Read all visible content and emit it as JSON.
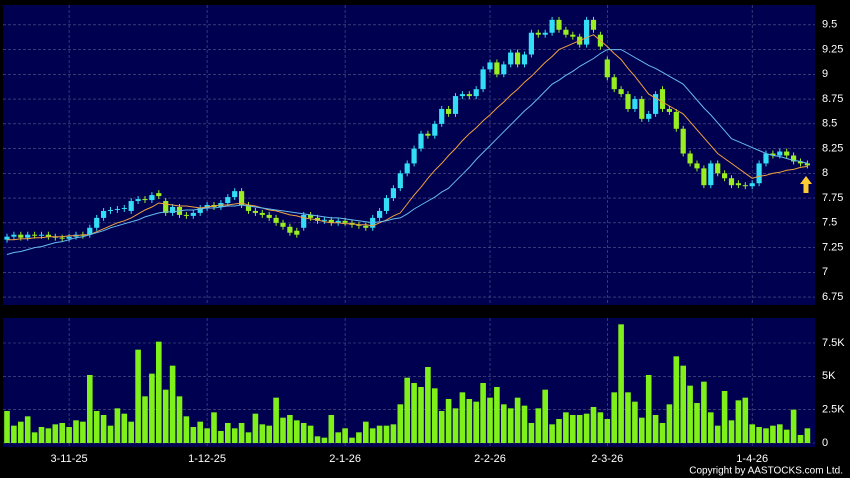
{
  "chart_data": [
    {
      "type": "candlestick",
      "open": [
        7.33,
        7.36,
        7.38,
        7.35,
        7.38,
        7.37,
        7.38,
        7.36,
        7.35,
        7.34,
        7.36,
        7.38,
        7.38,
        7.45,
        7.55,
        7.62,
        7.63,
        7.64,
        7.62,
        7.72,
        7.74,
        7.73,
        7.8,
        7.72,
        7.6,
        7.66,
        7.58,
        7.57,
        7.6,
        7.65,
        7.68,
        7.66,
        7.7,
        7.76,
        7.82,
        7.68,
        7.62,
        7.6,
        7.58,
        7.55,
        7.5,
        7.46,
        7.42,
        7.45,
        7.58,
        7.55,
        7.52,
        7.53,
        7.5,
        7.52,
        7.5,
        7.48,
        7.47,
        7.45,
        7.55,
        7.62,
        7.75,
        7.85,
        8.0,
        8.1,
        8.25,
        8.4,
        8.38,
        8.5,
        8.65,
        8.6,
        8.78,
        8.8,
        8.78,
        8.85,
        9.05,
        9.12,
        9.0,
        9.1,
        9.22,
        9.1,
        9.2,
        9.42,
        9.4,
        9.42,
        9.55,
        9.45,
        9.4,
        9.38,
        9.3,
        9.55,
        9.4,
        9.15,
        8.97,
        8.85,
        8.8,
        8.65,
        8.75,
        8.55,
        8.6,
        8.85,
        8.65,
        8.62,
        8.45,
        8.2,
        8.1,
        8.05,
        7.88,
        8.1,
        8.0,
        7.95,
        7.9,
        7.88,
        7.87,
        7.9,
        8.1,
        8.2,
        8.18,
        8.22,
        8.18,
        8.12,
        8.1
      ],
      "high": [
        7.39,
        7.41,
        7.41,
        7.41,
        7.41,
        7.41,
        7.41,
        7.39,
        7.38,
        7.39,
        7.41,
        7.41,
        7.48,
        7.58,
        7.65,
        7.66,
        7.67,
        7.68,
        7.75,
        7.77,
        7.77,
        7.81,
        7.83,
        7.75,
        7.69,
        7.69,
        7.61,
        7.63,
        7.68,
        7.71,
        7.71,
        7.73,
        7.79,
        7.85,
        7.85,
        7.71,
        7.65,
        7.63,
        7.61,
        7.58,
        7.53,
        7.49,
        7.45,
        7.61,
        7.61,
        7.58,
        7.56,
        7.56,
        7.55,
        7.55,
        7.53,
        7.51,
        7.5,
        7.58,
        7.65,
        7.78,
        7.88,
        8.03,
        8.13,
        8.28,
        8.43,
        8.43,
        8.53,
        8.68,
        8.68,
        8.81,
        8.83,
        8.83,
        8.88,
        9.08,
        9.15,
        9.15,
        9.13,
        9.25,
        9.25,
        9.23,
        9.45,
        9.45,
        9.45,
        9.58,
        9.58,
        9.48,
        9.43,
        9.41,
        9.58,
        9.58,
        9.43,
        9.18,
        9.0,
        8.88,
        8.83,
        8.78,
        8.78,
        8.63,
        8.83,
        8.88,
        8.68,
        8.65,
        8.48,
        8.23,
        8.13,
        8.08,
        8.13,
        8.13,
        8.03,
        7.98,
        7.93,
        7.91,
        7.93,
        8.13,
        8.23,
        8.23,
        8.25,
        8.25,
        8.21,
        8.15,
        8.13
      ],
      "low": [
        7.3,
        7.33,
        7.32,
        7.32,
        7.34,
        7.34,
        7.33,
        7.32,
        7.31,
        7.31,
        7.33,
        7.34,
        7.35,
        7.42,
        7.52,
        7.59,
        7.6,
        7.61,
        7.59,
        7.69,
        7.7,
        7.7,
        7.74,
        7.57,
        7.57,
        7.55,
        7.54,
        7.54,
        7.57,
        7.62,
        7.63,
        7.63,
        7.67,
        7.73,
        7.65,
        7.59,
        7.57,
        7.55,
        7.52,
        7.47,
        7.43,
        7.37,
        7.35,
        7.42,
        7.52,
        7.49,
        7.49,
        7.47,
        7.47,
        7.47,
        7.45,
        7.44,
        7.42,
        7.42,
        7.52,
        7.59,
        7.72,
        7.82,
        7.97,
        8.07,
        8.22,
        8.35,
        8.35,
        8.47,
        8.57,
        8.57,
        8.75,
        8.75,
        8.75,
        8.82,
        9.02,
        8.97,
        8.97,
        9.07,
        9.07,
        9.07,
        9.17,
        9.37,
        9.37,
        9.39,
        9.42,
        9.37,
        9.35,
        9.27,
        9.27,
        9.42,
        9.25,
        8.94,
        8.82,
        8.77,
        8.62,
        8.62,
        8.52,
        8.52,
        8.57,
        8.62,
        8.59,
        8.42,
        8.17,
        8.07,
        8.02,
        7.85,
        7.85,
        7.97,
        7.92,
        7.85,
        7.85,
        7.84,
        7.84,
        7.87,
        8.07,
        8.15,
        8.15,
        8.15,
        8.09,
        8.07,
        8.05
      ],
      "close": [
        7.36,
        7.38,
        7.35,
        7.38,
        7.37,
        7.38,
        7.36,
        7.35,
        7.34,
        7.36,
        7.38,
        7.37,
        7.45,
        7.55,
        7.62,
        7.63,
        7.64,
        7.65,
        7.72,
        7.74,
        7.73,
        7.78,
        7.77,
        7.6,
        7.66,
        7.58,
        7.57,
        7.6,
        7.65,
        7.68,
        7.66,
        7.7,
        7.76,
        7.82,
        7.68,
        7.62,
        7.6,
        7.58,
        7.55,
        7.5,
        7.46,
        7.4,
        7.38,
        7.58,
        7.55,
        7.52,
        7.53,
        7.5,
        7.52,
        7.5,
        7.48,
        7.47,
        7.45,
        7.55,
        7.62,
        7.75,
        7.85,
        8.0,
        8.1,
        8.25,
        8.4,
        8.38,
        8.5,
        8.65,
        8.6,
        8.78,
        8.8,
        8.78,
        8.85,
        9.05,
        9.12,
        9.0,
        9.1,
        9.22,
        9.1,
        9.2,
        9.42,
        9.4,
        9.42,
        9.55,
        9.45,
        9.4,
        9.38,
        9.3,
        9.55,
        9.45,
        9.28,
        8.97,
        8.85,
        8.8,
        8.65,
        8.75,
        8.55,
        8.6,
        8.8,
        8.65,
        8.62,
        8.45,
        8.2,
        8.1,
        8.05,
        7.88,
        8.1,
        8.0,
        7.95,
        7.88,
        7.88,
        7.87,
        7.9,
        8.1,
        8.2,
        8.18,
        8.22,
        8.18,
        8.12,
        8.1,
        8.08
      ],
      "up_color": "#33ddf5",
      "down_color": "#99ee22",
      "series": [
        {
          "color": "#f0a040",
          "values": [
            7.33,
            7.33,
            7.34,
            7.34,
            7.35,
            7.35,
            7.36,
            7.36,
            7.36,
            7.37,
            7.37,
            7.38,
            7.38,
            7.41,
            7.44,
            7.47,
            7.5,
            7.52,
            7.55,
            7.59,
            7.63,
            7.66,
            7.7,
            7.69,
            7.68,
            7.67,
            7.67,
            7.66,
            7.65,
            7.66,
            7.67,
            7.68,
            7.68,
            7.69,
            7.7,
            7.68,
            7.67,
            7.65,
            7.63,
            7.62,
            7.6,
            7.58,
            7.57,
            7.55,
            7.54,
            7.53,
            7.51,
            7.5,
            7.5,
            7.49,
            7.49,
            7.48,
            7.48,
            7.47,
            7.5,
            7.53,
            7.57,
            7.6,
            7.69,
            7.78,
            7.86,
            7.95,
            8.03,
            8.1,
            8.18,
            8.25,
            8.33,
            8.4,
            8.46,
            8.53,
            8.59,
            8.66,
            8.72,
            8.79,
            8.85,
            8.92,
            8.98,
            9.05,
            9.12,
            9.18,
            9.25,
            9.28,
            9.31,
            9.34,
            9.37,
            9.4,
            9.34,
            9.28,
            9.21,
            9.15,
            9.06,
            8.98,
            8.89,
            8.8,
            8.76,
            8.72,
            8.68,
            8.64,
            8.6,
            8.52,
            8.44,
            8.36,
            8.28,
            8.2,
            8.15,
            8.1,
            8.05,
            8.0,
            7.95,
            7.97,
            7.98,
            8.0,
            8.01,
            8.03,
            8.04,
            8.06,
            8.07
          ]
        },
        {
          "color": "#66bbee",
          "values": [
            7.18,
            7.2,
            7.21,
            7.23,
            7.25,
            7.26,
            7.28,
            7.3,
            7.31,
            7.33,
            7.35,
            7.36,
            7.38,
            7.4,
            7.42,
            7.45,
            7.47,
            7.49,
            7.51,
            7.53,
            7.56,
            7.58,
            7.6,
            7.61,
            7.61,
            7.62,
            7.63,
            7.63,
            7.64,
            7.65,
            7.65,
            7.66,
            7.67,
            7.67,
            7.68,
            7.67,
            7.66,
            7.65,
            7.64,
            7.63,
            7.62,
            7.61,
            7.6,
            7.59,
            7.58,
            7.57,
            7.56,
            7.55,
            7.55,
            7.54,
            7.53,
            7.52,
            7.51,
            7.5,
            7.51,
            7.52,
            7.54,
            7.55,
            7.59,
            7.64,
            7.68,
            7.72,
            7.76,
            7.81,
            7.85,
            7.92,
            7.99,
            8.06,
            8.14,
            8.21,
            8.28,
            8.35,
            8.42,
            8.49,
            8.56,
            8.63,
            8.69,
            8.76,
            8.83,
            8.9,
            8.94,
            8.99,
            9.03,
            9.08,
            9.12,
            9.16,
            9.21,
            9.25,
            9.25,
            9.25,
            9.21,
            9.17,
            9.13,
            9.09,
            9.06,
            9.02,
            8.98,
            8.94,
            8.9,
            8.82,
            8.74,
            8.66,
            8.59,
            8.51,
            8.43,
            8.35,
            8.32,
            8.29,
            8.26,
            8.23,
            8.2,
            8.18,
            8.17,
            8.15,
            8.13,
            8.12,
            8.1
          ]
        }
      ],
      "ylim": [
        6.67,
        9.7
      ],
      "yticks": [
        6.75,
        7,
        7.25,
        7.5,
        7.75,
        8,
        8.25,
        8.5,
        8.75,
        9,
        9.25,
        9.5
      ],
      "grid": true
    },
    {
      "type": "bar",
      "categories": [
        null,
        null,
        null,
        null,
        null,
        null,
        null,
        null,
        null,
        "3-11-25",
        null,
        null,
        null,
        null,
        null,
        null,
        null,
        null,
        null,
        null,
        null,
        null,
        null,
        null,
        null,
        null,
        null,
        null,
        null,
        "1-12-25",
        null,
        null,
        null,
        null,
        null,
        null,
        null,
        null,
        null,
        null,
        null,
        null,
        null,
        null,
        null,
        null,
        null,
        null,
        null,
        "2-1-26",
        null,
        null,
        null,
        null,
        null,
        null,
        null,
        null,
        null,
        null,
        null,
        null,
        null,
        null,
        null,
        null,
        null,
        null,
        null,
        null,
        "2-2-26",
        null,
        null,
        null,
        null,
        null,
        null,
        null,
        null,
        null,
        null,
        null,
        null,
        null,
        null,
        null,
        null,
        "2-3-26",
        null,
        null,
        null,
        null,
        null,
        null,
        null,
        null,
        null,
        null,
        null,
        null,
        null,
        null,
        null,
        null,
        null,
        null,
        null,
        null,
        "1-4-26",
        null,
        null,
        null,
        null,
        null,
        null,
        null,
        null
      ],
      "values": [
        2400,
        1300,
        1600,
        2000,
        800,
        1200,
        1100,
        1400,
        1500,
        1200,
        1700,
        1600,
        5100,
        2400,
        2100,
        1300,
        2600,
        2200,
        1600,
        7000,
        3500,
        5200,
        7600,
        4000,
        5800,
        3500,
        2000,
        1200,
        1600,
        1100,
        2300,
        900,
        1500,
        1100,
        1500,
        800,
        2200,
        1400,
        1300,
        3400,
        1900,
        2100,
        1700,
        1500,
        1300,
        500,
        400,
        2100,
        800,
        1100,
        400,
        800,
        1600,
        1100,
        1300,
        1300,
        1400,
        2900,
        4900,
        4500,
        4200,
        5700,
        4100,
        2400,
        3300,
        2600,
        3800,
        3300,
        3100,
        4500,
        3400,
        4200,
        2900,
        2600,
        3400,
        2800,
        1500,
        2600,
        4000,
        1400,
        1800,
        2300,
        2100,
        2100,
        2200,
        2700,
        2300,
        1800,
        3800,
        8900,
        3800,
        3100,
        1900,
        5100,
        2100,
        1500,
        2900,
        6500,
        5800,
        4300,
        3000,
        4600,
        2300,
        1300,
        3900,
        1700,
        3200,
        3400,
        1400,
        1200,
        1100,
        1300,
        1400,
        1000,
        2500,
        600,
        1100
      ],
      "color": "#7ff01a",
      "ylim": [
        0,
        9375
      ],
      "yticks": [
        0,
        {
          "value": 2500,
          "label": "2.5K"
        },
        {
          "value": 5000,
          "label": "5K"
        },
        {
          "value": 7500,
          "label": "7.5K"
        }
      ],
      "grid": true
    }
  ],
  "footer": {
    "copyright": "Copyright by AASTOCKS.com Ltd."
  }
}
